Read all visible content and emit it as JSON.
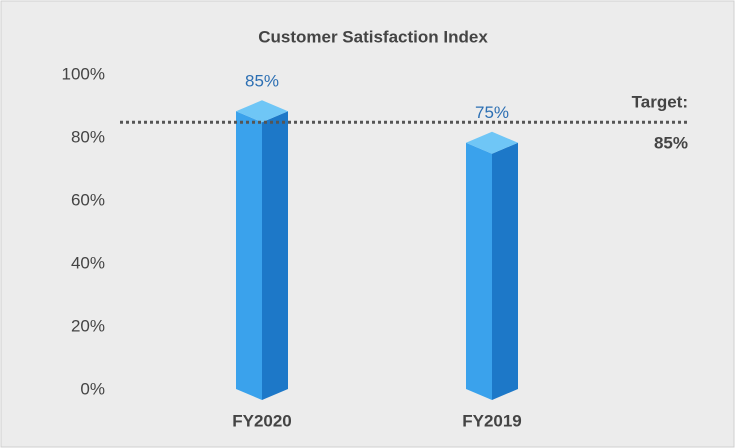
{
  "chart_data": {
    "type": "bar",
    "title": "Customer Satisfaction Index",
    "categories": [
      "FY2020",
      "FY2019"
    ],
    "values": [
      85,
      75
    ],
    "value_labels": [
      "85%",
      "75%"
    ],
    "color": "#2a8ee0",
    "ylim": [
      0,
      100
    ],
    "yticks": [
      {
        "value": 0,
        "label": "0%"
      },
      {
        "value": 20,
        "label": "20%"
      },
      {
        "value": 40,
        "label": "40%"
      },
      {
        "value": 60,
        "label": "60%"
      },
      {
        "value": 80,
        "label": "80%"
      },
      {
        "value": 100,
        "label": "100%"
      }
    ],
    "target": {
      "value": 85,
      "label": "Target:",
      "value_label": "85%"
    }
  }
}
